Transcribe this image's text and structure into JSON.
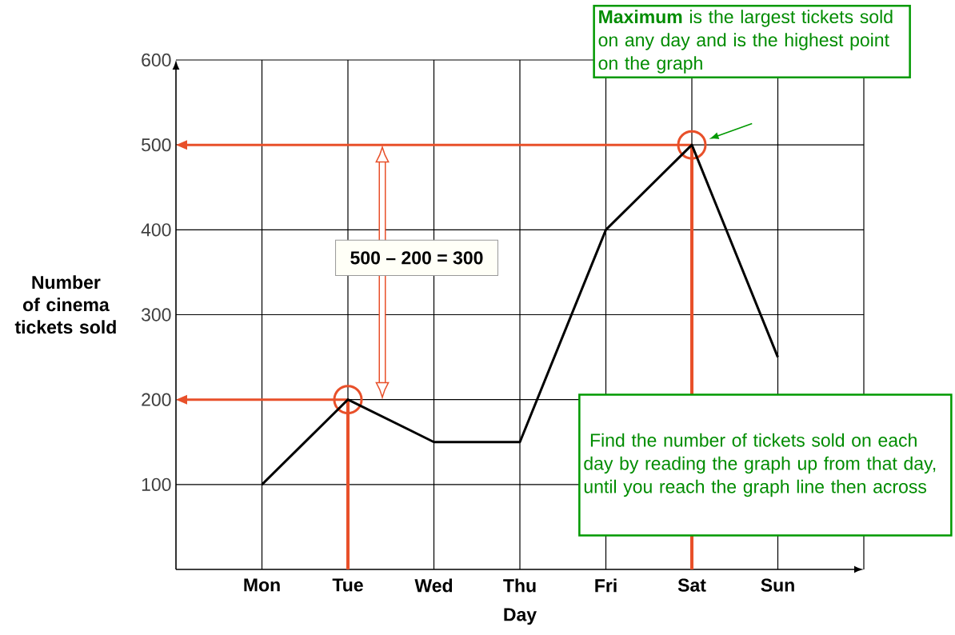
{
  "chart_data": {
    "type": "line",
    "xlabel": "Day",
    "ylabel": "Number of cinema tickets sold",
    "categories": [
      "Mon",
      "Tue",
      "Wed",
      "Thu",
      "Fri",
      "Sat",
      "Sun"
    ],
    "series": [
      {
        "color": "#000000",
        "values": [
          100,
          200,
          150,
          150,
          400,
          500,
          250
        ]
      }
    ],
    "ylim": [
      0,
      600
    ],
    "yticks": [
      100,
      200,
      300,
      400,
      500,
      600
    ],
    "grid": true,
    "marker": "none",
    "line_style": "solid",
    "ref_lines": [
      {
        "axis": "y",
        "value": 500,
        "color": "#e8502a"
      },
      {
        "axis": "y",
        "value": 200,
        "color": "#e8502a"
      },
      {
        "axis": "x",
        "value": "Tue",
        "color": "#e8502a"
      },
      {
        "axis": "x",
        "value": "Sat",
        "color": "#e8502a"
      }
    ],
    "annotations": [
      "**Maximum** is the largest tickets sold on any day and is the highest point on the graph",
      "500 – 200 = 300",
      " Find the number of tickets sold on each day by reading the graph up from that day, until you reach the graph line then across"
    ]
  }
}
